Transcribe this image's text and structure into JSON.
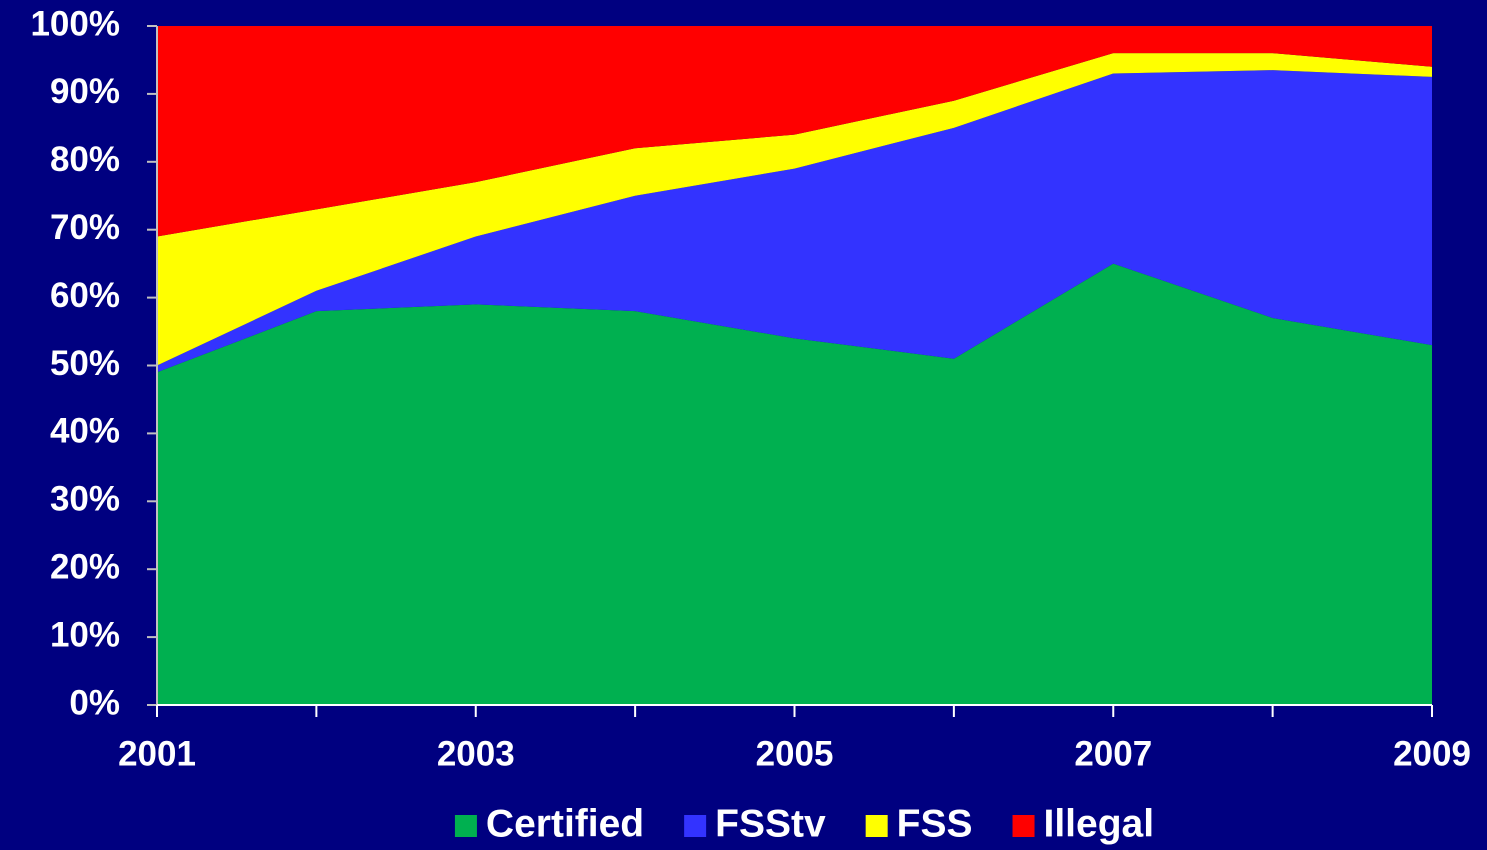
{
  "chart_data": {
    "type": "stacked_area",
    "x": [
      2001,
      2002,
      2003,
      2004,
      2005,
      2006,
      2007,
      2008,
      2009
    ],
    "xlim": [
      2001,
      2009
    ],
    "xticks": [
      2001,
      2003,
      2005,
      2007,
      2009
    ],
    "ylim": [
      0,
      100
    ],
    "yticks": [
      {
        "value": 0,
        "label": "0%"
      },
      {
        "value": 10,
        "label": "10%"
      },
      {
        "value": 20,
        "label": "20%"
      },
      {
        "value": 30,
        "label": "30%"
      },
      {
        "value": 40,
        "label": "40%"
      },
      {
        "value": 50,
        "label": "50%"
      },
      {
        "value": 60,
        "label": "60%"
      },
      {
        "value": 70,
        "label": "70%"
      },
      {
        "value": 80,
        "label": "80%"
      },
      {
        "value": 90,
        "label": "90%"
      },
      {
        "value": 100,
        "label": "100%"
      }
    ],
    "legend": "bottom",
    "series": [
      {
        "name": "Certified",
        "color": "#00b050",
        "values": [
          49,
          58,
          59,
          58,
          54,
          51,
          65,
          57,
          53
        ]
      },
      {
        "name": "FSStv",
        "color": "#3333ff",
        "values": [
          1,
          3,
          10,
          17,
          25,
          34,
          28,
          36.5,
          39.5
        ]
      },
      {
        "name": "FSS",
        "color": "#ffff00",
        "values": [
          19,
          12,
          8,
          7,
          5,
          4,
          3,
          2.5,
          1.5
        ]
      },
      {
        "name": "Illegal",
        "color": "#ff0000",
        "values": [
          31,
          27,
          23,
          18,
          16,
          11,
          4,
          4,
          6
        ]
      }
    ]
  }
}
